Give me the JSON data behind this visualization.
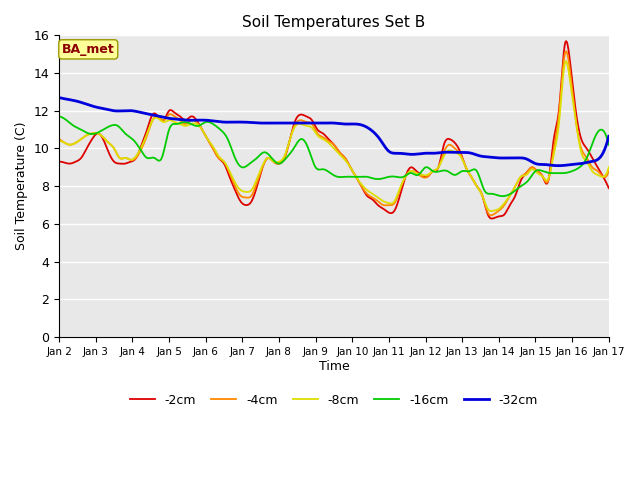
{
  "title": "Soil Temperatures Set B",
  "xlabel": "Time",
  "ylabel": "Soil Temperature (C)",
  "ylim": [
    0,
    16
  ],
  "yticks": [
    0,
    2,
    4,
    6,
    8,
    10,
    12,
    14,
    16
  ],
  "xtick_labels": [
    "Jan 2",
    "Jan 3",
    "Jan 4",
    "Jan 5",
    "Jan 6",
    "Jan 7",
    "Jan 8",
    "Jan 9",
    "Jan 10",
    "Jan 11",
    "Jan 12",
    "Jan 13",
    "Jan 14",
    "Jan 15",
    "Jan 16",
    "Jan 17"
  ],
  "bg_color": "#e8e8e8",
  "annotation_text": "BA_met",
  "annotation_bg": "#ffff99",
  "annotation_border": "#999900",
  "series": {
    "-2cm": {
      "color": "#dd0000",
      "lw": 1.3,
      "x": [
        0.0,
        0.15,
        0.3,
        0.45,
        0.6,
        0.75,
        0.9,
        1.05,
        1.2,
        1.35,
        1.5,
        1.65,
        1.8,
        1.95,
        2.1,
        2.25,
        2.4,
        2.55,
        2.7,
        2.85,
        3.0,
        3.15,
        3.3,
        3.45,
        3.6,
        3.75,
        3.9,
        4.05,
        4.2,
        4.35,
        4.5,
        4.65,
        4.8,
        4.95,
        5.1,
        5.25,
        5.4,
        5.55,
        5.7,
        5.85,
        6.0,
        6.15,
        6.3,
        6.45,
        6.6,
        6.75,
        6.9,
        7.05,
        7.2,
        7.35,
        7.5,
        7.65,
        7.8,
        7.95,
        8.1,
        8.25,
        8.4,
        8.55,
        8.7,
        8.85,
        9.0,
        9.15,
        9.3,
        9.45,
        9.6,
        9.75,
        9.9,
        10.05,
        10.2,
        10.35,
        10.5,
        10.65,
        10.8,
        10.95,
        11.1,
        11.25,
        11.4,
        11.55,
        11.7,
        11.85,
        12.0,
        12.15,
        12.3,
        12.45,
        12.6,
        12.75,
        12.9,
        13.05,
        13.2,
        13.35,
        13.5,
        13.65,
        13.8,
        13.95,
        14.1,
        14.25,
        14.4,
        14.55,
        14.7,
        14.85,
        15.0
      ],
      "y": [
        9.3,
        9.25,
        9.2,
        9.3,
        9.5,
        10.0,
        10.5,
        10.8,
        10.5,
        9.8,
        9.3,
        9.2,
        9.2,
        9.3,
        9.5,
        10.2,
        11.0,
        11.8,
        11.7,
        11.5,
        12.0,
        11.9,
        11.7,
        11.5,
        11.7,
        11.5,
        11.0,
        10.5,
        10.0,
        9.5,
        9.2,
        8.5,
        7.8,
        7.2,
        7.0,
        7.2,
        8.0,
        9.0,
        9.5,
        9.3,
        9.2,
        9.5,
        10.5,
        11.5,
        11.8,
        11.7,
        11.5,
        11.0,
        10.8,
        10.5,
        10.2,
        9.8,
        9.5,
        9.0,
        8.5,
        8.0,
        7.5,
        7.3,
        7.0,
        6.8,
        6.6,
        6.7,
        7.5,
        8.5,
        9.0,
        8.8,
        8.6,
        8.5,
        8.8,
        9.0,
        10.2,
        10.5,
        10.3,
        9.8,
        9.0,
        8.5,
        8.0,
        7.5,
        6.5,
        6.3,
        6.4,
        6.5,
        7.0,
        7.5,
        8.3,
        8.7,
        9.0,
        8.8,
        8.5,
        8.3,
        10.5,
        12.2,
        15.5,
        14.5,
        12.0,
        10.5,
        10.0,
        9.5,
        9.0,
        8.5,
        7.9
      ]
    },
    "-4cm": {
      "color": "#ff8800",
      "lw": 1.3,
      "x": [
        0.0,
        0.15,
        0.3,
        0.45,
        0.6,
        0.75,
        0.9,
        1.05,
        1.2,
        1.35,
        1.5,
        1.65,
        1.8,
        1.95,
        2.1,
        2.25,
        2.4,
        2.55,
        2.7,
        2.85,
        3.0,
        3.15,
        3.3,
        3.45,
        3.6,
        3.75,
        3.9,
        4.05,
        4.2,
        4.35,
        4.5,
        4.65,
        4.8,
        4.95,
        5.1,
        5.25,
        5.4,
        5.55,
        5.7,
        5.85,
        6.0,
        6.15,
        6.3,
        6.45,
        6.6,
        6.75,
        6.9,
        7.05,
        7.2,
        7.35,
        7.5,
        7.65,
        7.8,
        7.95,
        8.1,
        8.25,
        8.4,
        8.55,
        8.7,
        8.85,
        9.0,
        9.15,
        9.3,
        9.45,
        9.6,
        9.75,
        9.9,
        10.05,
        10.2,
        10.35,
        10.5,
        10.65,
        10.8,
        10.95,
        11.1,
        11.25,
        11.4,
        11.55,
        11.7,
        11.85,
        12.0,
        12.15,
        12.3,
        12.45,
        12.6,
        12.75,
        12.9,
        13.05,
        13.2,
        13.35,
        13.5,
        13.65,
        13.8,
        13.95,
        14.1,
        14.25,
        14.4,
        14.55,
        14.7,
        14.85,
        15.0
      ],
      "y": [
        10.5,
        10.3,
        10.2,
        10.3,
        10.5,
        10.7,
        10.8,
        10.8,
        10.6,
        10.3,
        10.0,
        9.5,
        9.5,
        9.4,
        9.5,
        10.0,
        10.7,
        11.5,
        11.7,
        11.5,
        11.8,
        11.7,
        11.5,
        11.3,
        11.5,
        11.4,
        11.0,
        10.5,
        10.0,
        9.5,
        9.3,
        8.7,
        8.0,
        7.5,
        7.4,
        7.5,
        8.2,
        9.0,
        9.5,
        9.3,
        9.2,
        9.5,
        10.5,
        11.3,
        11.5,
        11.4,
        11.3,
        10.8,
        10.6,
        10.4,
        10.2,
        9.8,
        9.5,
        9.0,
        8.5,
        8.0,
        7.6,
        7.4,
        7.2,
        7.0,
        7.0,
        7.1,
        7.8,
        8.5,
        8.8,
        8.7,
        8.5,
        8.5,
        8.8,
        9.0,
        9.8,
        10.2,
        10.0,
        9.7,
        9.0,
        8.5,
        8.0,
        7.5,
        6.6,
        6.5,
        6.7,
        7.0,
        7.5,
        8.0,
        8.5,
        8.7,
        9.0,
        8.8,
        8.5,
        8.3,
        10.0,
        12.0,
        15.0,
        14.0,
        11.5,
        10.0,
        9.5,
        9.0,
        8.8,
        8.5,
        8.8
      ]
    },
    "-8cm": {
      "color": "#dddd00",
      "lw": 1.3,
      "x": [
        0.0,
        0.15,
        0.3,
        0.45,
        0.6,
        0.75,
        0.9,
        1.05,
        1.2,
        1.35,
        1.5,
        1.65,
        1.8,
        1.95,
        2.1,
        2.25,
        2.4,
        2.55,
        2.7,
        2.85,
        3.0,
        3.15,
        3.3,
        3.45,
        3.6,
        3.75,
        3.9,
        4.05,
        4.2,
        4.35,
        4.5,
        4.65,
        4.8,
        4.95,
        5.1,
        5.25,
        5.4,
        5.55,
        5.7,
        5.85,
        6.0,
        6.15,
        6.3,
        6.45,
        6.6,
        6.75,
        6.9,
        7.05,
        7.2,
        7.35,
        7.5,
        7.65,
        7.8,
        7.95,
        8.1,
        8.25,
        8.4,
        8.55,
        8.7,
        8.85,
        9.0,
        9.15,
        9.3,
        9.45,
        9.6,
        9.75,
        9.9,
        10.05,
        10.2,
        10.35,
        10.5,
        10.65,
        10.8,
        10.95,
        11.1,
        11.25,
        11.4,
        11.55,
        11.7,
        11.85,
        12.0,
        12.15,
        12.3,
        12.45,
        12.6,
        12.75,
        12.9,
        13.05,
        13.2,
        13.35,
        13.5,
        13.65,
        13.8,
        13.95,
        14.1,
        14.25,
        14.4,
        14.55,
        14.7,
        14.85,
        15.0
      ],
      "y": [
        10.4,
        10.3,
        10.2,
        10.3,
        10.5,
        10.7,
        10.8,
        10.8,
        10.6,
        10.3,
        10.0,
        9.5,
        9.5,
        9.4,
        9.6,
        10.1,
        10.8,
        11.5,
        11.6,
        11.4,
        11.5,
        11.4,
        11.3,
        11.2,
        11.3,
        11.3,
        11.0,
        10.5,
        10.1,
        9.6,
        9.3,
        8.8,
        8.2,
        7.8,
        7.7,
        7.8,
        8.4,
        9.1,
        9.5,
        9.3,
        9.3,
        9.6,
        10.5,
        11.2,
        11.3,
        11.2,
        11.1,
        10.7,
        10.5,
        10.3,
        10.0,
        9.7,
        9.4,
        9.0,
        8.5,
        8.1,
        7.8,
        7.6,
        7.4,
        7.2,
        7.1,
        7.2,
        7.9,
        8.5,
        8.8,
        8.7,
        8.6,
        8.6,
        8.8,
        9.0,
        9.6,
        9.9,
        9.8,
        9.6,
        9.0,
        8.5,
        8.0,
        7.5,
        6.8,
        6.7,
        6.8,
        7.1,
        7.5,
        8.0,
        8.5,
        8.6,
        8.9,
        8.7,
        8.5,
        8.4,
        9.7,
        11.5,
        14.5,
        13.5,
        11.5,
        9.8,
        9.3,
        8.8,
        8.6,
        8.5,
        9.0
      ]
    },
    "-16cm": {
      "color": "#00cc00",
      "lw": 1.3,
      "x": [
        0.0,
        0.2,
        0.4,
        0.6,
        0.8,
        1.0,
        1.2,
        1.4,
        1.6,
        1.8,
        2.0,
        2.2,
        2.4,
        2.6,
        2.8,
        3.0,
        3.2,
        3.4,
        3.6,
        3.8,
        4.0,
        4.2,
        4.4,
        4.6,
        4.8,
        5.0,
        5.2,
        5.4,
        5.6,
        5.8,
        6.0,
        6.2,
        6.4,
        6.6,
        6.8,
        7.0,
        7.2,
        7.4,
        7.6,
        7.8,
        8.0,
        8.2,
        8.4,
        8.6,
        8.8,
        9.0,
        9.2,
        9.4,
        9.6,
        9.8,
        10.0,
        10.2,
        10.4,
        10.6,
        10.8,
        11.0,
        11.2,
        11.4,
        11.6,
        11.8,
        12.0,
        12.2,
        12.4,
        12.6,
        12.8,
        13.0,
        13.2,
        13.4,
        13.6,
        13.8,
        14.0,
        14.2,
        14.4,
        14.6,
        14.8,
        15.0
      ],
      "y": [
        11.7,
        11.5,
        11.2,
        11.0,
        10.8,
        10.8,
        11.0,
        11.2,
        11.2,
        10.8,
        10.5,
        10.0,
        9.5,
        9.5,
        9.5,
        11.0,
        11.3,
        11.4,
        11.3,
        11.2,
        11.4,
        11.3,
        11.0,
        10.5,
        9.5,
        9.0,
        9.2,
        9.5,
        9.8,
        9.5,
        9.2,
        9.5,
        10.0,
        10.5,
        10.0,
        9.0,
        8.9,
        8.7,
        8.5,
        8.5,
        8.5,
        8.5,
        8.5,
        8.4,
        8.4,
        8.5,
        8.5,
        8.5,
        8.7,
        8.6,
        9.0,
        8.8,
        8.8,
        8.8,
        8.6,
        8.8,
        8.8,
        8.8,
        7.8,
        7.6,
        7.5,
        7.5,
        7.7,
        8.0,
        8.3,
        8.8,
        8.8,
        8.7,
        8.7,
        8.7,
        8.8,
        9.0,
        9.5,
        10.5,
        11.0,
        10.2
      ]
    },
    "-32cm": {
      "color": "#0000dd",
      "lw": 2.0,
      "x": [
        0.0,
        0.25,
        0.5,
        0.75,
        1.0,
        1.25,
        1.5,
        1.75,
        2.0,
        2.25,
        2.5,
        2.75,
        3.0,
        3.25,
        3.5,
        3.75,
        4.0,
        4.25,
        4.5,
        4.75,
        5.0,
        5.25,
        5.5,
        5.75,
        6.0,
        6.25,
        6.5,
        6.75,
        7.0,
        7.25,
        7.5,
        7.75,
        8.0,
        8.25,
        8.5,
        8.75,
        9.0,
        9.25,
        9.5,
        9.75,
        10.0,
        10.25,
        10.5,
        10.75,
        11.0,
        11.25,
        11.5,
        11.75,
        12.0,
        12.25,
        12.5,
        12.75,
        13.0,
        13.25,
        13.5,
        13.75,
        14.0,
        14.25,
        14.5,
        14.75,
        15.0
      ],
      "y": [
        12.7,
        12.6,
        12.5,
        12.35,
        12.2,
        12.1,
        12.0,
        12.0,
        12.0,
        11.9,
        11.8,
        11.7,
        11.6,
        11.55,
        11.5,
        11.5,
        11.5,
        11.45,
        11.4,
        11.4,
        11.4,
        11.38,
        11.35,
        11.35,
        11.35,
        11.35,
        11.35,
        11.35,
        11.35,
        11.35,
        11.35,
        11.3,
        11.3,
        11.25,
        11.0,
        10.5,
        9.85,
        9.75,
        9.7,
        9.7,
        9.75,
        9.75,
        9.8,
        9.8,
        9.8,
        9.75,
        9.6,
        9.55,
        9.5,
        9.5,
        9.5,
        9.45,
        9.2,
        9.15,
        9.1,
        9.1,
        9.15,
        9.2,
        9.3,
        9.5,
        10.65
      ]
    }
  }
}
